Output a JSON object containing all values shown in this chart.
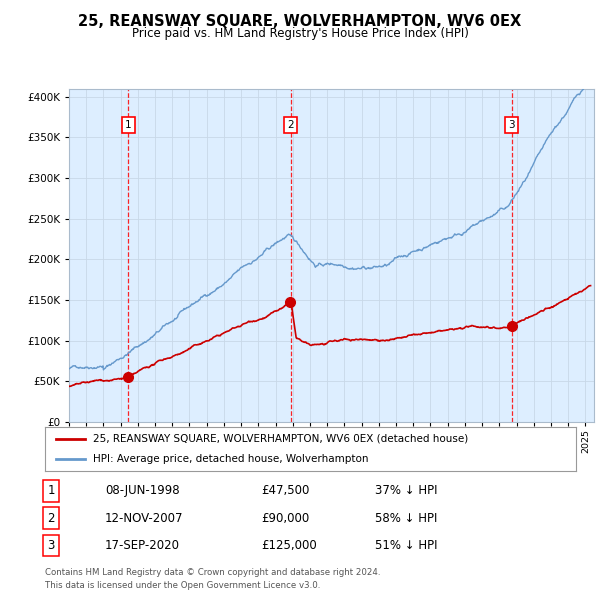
{
  "title": "25, REANSWAY SQUARE, WOLVERHAMPTON, WV6 0EX",
  "subtitle": "Price paid vs. HM Land Registry's House Price Index (HPI)",
  "legend_line1": "25, REANSWAY SQUARE, WOLVERHAMPTON, WV6 0EX (detached house)",
  "legend_line2": "HPI: Average price, detached house, Wolverhampton",
  "transactions": [
    {
      "label": "1",
      "date": "08-JUN-1998",
      "price": 47500,
      "pct": "37%",
      "x": 1998.44
    },
    {
      "label": "2",
      "date": "12-NOV-2007",
      "price": 90000,
      "pct": "58%",
      "x": 2007.87
    },
    {
      "label": "3",
      "date": "17-SEP-2020",
      "price": 125000,
      "pct": "51%",
      "x": 2020.71
    }
  ],
  "table_rows": [
    [
      "1",
      "08-JUN-1998",
      "£47,500",
      "37% ↓ HPI"
    ],
    [
      "2",
      "12-NOV-2007",
      "£90,000",
      "58% ↓ HPI"
    ],
    [
      "3",
      "17-SEP-2020",
      "£125,000",
      "51% ↓ HPI"
    ]
  ],
  "footer": "Contains HM Land Registry data © Crown copyright and database right 2024.\nThis data is licensed under the Open Government Licence v3.0.",
  "red_color": "#cc0000",
  "blue_color": "#6699cc",
  "bg_color": "#ddeeff",
  "grid_color": "#c8d8e8",
  "ylim_max": 410000,
  "xlim_start": 1995.0,
  "xlim_end": 2025.5
}
